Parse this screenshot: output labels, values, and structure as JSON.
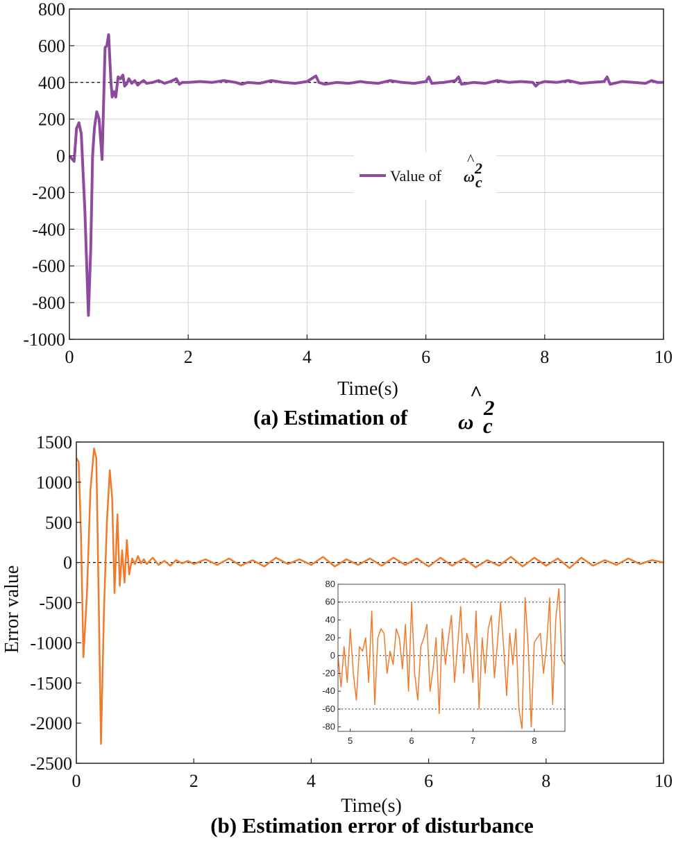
{
  "colors": {
    "purple": "#8e4a9e",
    "orange": "#ee7a2a",
    "grid": "#d4d4d4",
    "reference": "#000000"
  },
  "chart_data": [
    {
      "type": "line",
      "caption_prefix": "(a) Estimation of",
      "caption_symbol": "ω",
      "caption_subscript": "c",
      "caption_superscript": "2",
      "caption_hat": "^",
      "xlabel": "Time(s)",
      "ylabel": "",
      "xlim": [
        0,
        10
      ],
      "ylim": [
        -1000,
        800
      ],
      "xticks": [
        "0",
        "2",
        "4",
        "6",
        "8",
        "10"
      ],
      "yticks": [
        "800",
        "600",
        "400",
        "200",
        "0",
        "-200",
        "-400",
        "-600",
        "-800",
        "-1000"
      ],
      "grid": true,
      "legend_placement": "center",
      "legend_prefix": "Value of",
      "legend_symbol": "ω",
      "legend_subscript": "c",
      "legend_superscript": "2",
      "legend_hat": "^",
      "reference_line": {
        "y": 400,
        "style": "dashed"
      },
      "series": [
        {
          "color": "#8e4a9e",
          "x": [
            0,
            0.08,
            0.12,
            0.16,
            0.2,
            0.26,
            0.32,
            0.36,
            0.39,
            0.42,
            0.46,
            0.5,
            0.55,
            0.6,
            0.63,
            0.66,
            0.7,
            0.72,
            0.75,
            0.78,
            0.82,
            0.86,
            0.9,
            0.93,
            0.96,
            1.0,
            1.05,
            1.1,
            1.15,
            1.2,
            1.25,
            1.3,
            1.4,
            1.5,
            1.6,
            1.7,
            1.8,
            1.85,
            1.9,
            2.0,
            2.2,
            2.4,
            2.6,
            2.8,
            2.9,
            3.0,
            3.2,
            3.4,
            3.6,
            3.8,
            4.0,
            4.15,
            4.2,
            4.3,
            4.5,
            4.7,
            4.9,
            5.0,
            5.2,
            5.4,
            5.6,
            5.8,
            6.0,
            6.05,
            6.1,
            6.3,
            6.5,
            6.55,
            6.6,
            6.8,
            7.0,
            7.2,
            7.4,
            7.6,
            7.8,
            7.85,
            7.9,
            8.0,
            8.2,
            8.4,
            8.6,
            8.8,
            9.0,
            9.05,
            9.1,
            9.3,
            9.5,
            9.7,
            9.8,
            9.9,
            10.0
          ],
          "y": [
            0,
            -30,
            150,
            180,
            120,
            -300,
            -870,
            -500,
            0,
            150,
            240,
            200,
            -20,
            590,
            600,
            660,
            400,
            320,
            350,
            320,
            430,
            420,
            440,
            380,
            390,
            420,
            395,
            410,
            385,
            400,
            410,
            395,
            400,
            410,
            395,
            405,
            420,
            390,
            400,
            400,
            405,
            400,
            410,
            400,
            390,
            400,
            395,
            410,
            400,
            395,
            405,
            435,
            400,
            390,
            400,
            395,
            405,
            400,
            395,
            410,
            400,
            395,
            405,
            430,
            395,
            400,
            410,
            430,
            390,
            400,
            395,
            410,
            400,
            405,
            400,
            380,
            395,
            405,
            400,
            410,
            395,
            400,
            405,
            430,
            390,
            405,
            400,
            395,
            410,
            400,
            400
          ]
        }
      ]
    },
    {
      "type": "line",
      "caption": "(b) Estimation error of disturbance",
      "xlabel": "Time(s)",
      "ylabel": "Error value",
      "xlim": [
        0,
        10
      ],
      "ylim": [
        -2500,
        1500
      ],
      "xticks": [
        "0",
        "2",
        "4",
        "6",
        "8",
        "10"
      ],
      "yticks": [
        "1500",
        "1000",
        "500",
        "0",
        "-500",
        "-1000",
        "-1500",
        "-2000",
        "-2500"
      ],
      "grid": false,
      "reference_line": {
        "y": 0,
        "style": "dashed"
      },
      "series": [
        {
          "color": "#ee7a2a",
          "x": [
            0,
            0.04,
            0.08,
            0.12,
            0.18,
            0.24,
            0.3,
            0.34,
            0.38,
            0.42,
            0.47,
            0.52,
            0.57,
            0.61,
            0.65,
            0.7,
            0.74,
            0.78,
            0.82,
            0.86,
            0.9,
            0.95,
            1.0,
            1.05,
            1.1,
            1.15,
            1.2,
            1.3,
            1.4,
            1.5,
            1.6,
            1.7,
            1.8,
            1.9,
            2.0,
            2.2,
            2.4,
            2.6,
            2.8,
            3.0,
            3.2,
            3.4,
            3.6,
            3.8,
            4.0,
            4.2,
            4.4,
            4.6,
            4.8,
            5.0,
            5.2,
            5.4,
            5.6,
            5.8,
            6.0,
            6.2,
            6.4,
            6.6,
            6.8,
            7.0,
            7.2,
            7.4,
            7.6,
            7.8,
            8.0,
            8.2,
            8.4,
            8.6,
            8.8,
            9.0,
            9.2,
            9.4,
            9.6,
            9.8,
            10.0
          ],
          "y": [
            1300,
            1250,
            300,
            -1180,
            -400,
            900,
            1420,
            1300,
            -400,
            -2260,
            -600,
            500,
            1150,
            800,
            -380,
            600,
            -290,
            150,
            -250,
            280,
            -150,
            50,
            -20,
            80,
            -10,
            40,
            -20,
            60,
            -30,
            20,
            -40,
            30,
            -10,
            20,
            -20,
            40,
            -30,
            50,
            -40,
            30,
            -50,
            60,
            -20,
            40,
            -30,
            70,
            -50,
            40,
            -30,
            50,
            -40,
            60,
            -30,
            50,
            -50,
            60,
            -40,
            50,
            -60,
            30,
            -40,
            70,
            -50,
            60,
            -40,
            50,
            -70,
            60,
            -40,
            30,
            -30,
            50,
            -20,
            30,
            0
          ]
        }
      ],
      "inset": {
        "xlim": [
          4.8,
          8.5
        ],
        "ylim": [
          -85,
          80
        ],
        "xticks": [
          "5",
          "6",
          "7",
          "8"
        ],
        "yticks": [
          "80",
          "60",
          "40",
          "20",
          "0",
          "-20",
          "-40",
          "-60",
          "-80"
        ],
        "reference_lines": [
          60,
          0,
          -60
        ],
        "series": [
          {
            "color": "#ee7a2a",
            "x": [
              4.8,
              4.85,
              4.9,
              4.95,
              5.0,
              5.05,
              5.1,
              5.15,
              5.2,
              5.25,
              5.3,
              5.35,
              5.4,
              5.45,
              5.5,
              5.55,
              5.6,
              5.65,
              5.7,
              5.75,
              5.8,
              5.85,
              5.9,
              5.95,
              6.0,
              6.05,
              6.1,
              6.15,
              6.2,
              6.25,
              6.3,
              6.35,
              6.4,
              6.45,
              6.5,
              6.55,
              6.6,
              6.65,
              6.7,
              6.75,
              6.8,
              6.85,
              6.9,
              6.95,
              7.0,
              7.05,
              7.1,
              7.15,
              7.2,
              7.25,
              7.3,
              7.35,
              7.4,
              7.45,
              7.5,
              7.55,
              7.6,
              7.65,
              7.7,
              7.75,
              7.8,
              7.85,
              7.9,
              7.95,
              8.0,
              8.05,
              8.1,
              8.15,
              8.2,
              8.25,
              8.3,
              8.35,
              8.4,
              8.45,
              8.5
            ],
            "y": [
              0,
              -35,
              10,
              -30,
              30,
              -20,
              -50,
              10,
              5,
              20,
              -30,
              50,
              -55,
              20,
              30,
              25,
              -20,
              5,
              -10,
              30,
              20,
              -15,
              35,
              -40,
              60,
              -20,
              -50,
              10,
              20,
              35,
              -40,
              -15,
              20,
              -65,
              30,
              -10,
              20,
              45,
              -30,
              10,
              55,
              -20,
              25,
              10,
              -30,
              50,
              -60,
              20,
              -20,
              30,
              45,
              -25,
              15,
              60,
              10,
              -45,
              25,
              -10,
              30,
              -60,
              -82,
              65,
              10,
              -80,
              15,
              20,
              25,
              -20,
              10,
              65,
              -55,
              40,
              75,
              -5,
              -10
            ]
          }
        ]
      }
    }
  ]
}
